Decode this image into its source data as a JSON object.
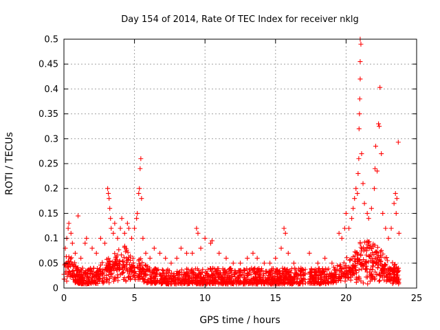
{
  "chart_data": {
    "type": "scatter",
    "title": "Day 154 of 2014, Rate Of TEC Index for receiver nklg",
    "xlabel": "GPS time / hours",
    "ylabel": "ROTI / TECUs",
    "xlim": [
      0,
      25
    ],
    "ylim": [
      0,
      0.5
    ],
    "x_ticks": [
      0,
      5,
      10,
      15,
      20,
      25
    ],
    "x_tick_labels": [
      "0",
      "5",
      "10",
      "15",
      "20",
      "25"
    ],
    "y_ticks": [
      0,
      0.05,
      0.1,
      0.15,
      0.2,
      0.25,
      0.3,
      0.35,
      0.4,
      0.45,
      0.5
    ],
    "y_tick_labels": [
      "0",
      "0.05",
      "0.1",
      "0.15",
      "0.2",
      "0.25",
      "0.3",
      "0.35",
      "0.4",
      "0.45",
      "0.5"
    ],
    "grid": true,
    "marker": "+",
    "marker_color": "#ff0000",
    "background_band": {
      "x_range": [
        0,
        23.8
      ],
      "y_range": [
        0.008,
        0.04
      ],
      "description_hidden": true
    },
    "points": [
      {
        "x": 0.1,
        "y": 0.08
      },
      {
        "x": 0.2,
        "y": 0.1
      },
      {
        "x": 0.3,
        "y": 0.12
      },
      {
        "x": 0.35,
        "y": 0.13
      },
      {
        "x": 0.5,
        "y": 0.11
      },
      {
        "x": 0.6,
        "y": 0.09
      },
      {
        "x": 0.8,
        "y": 0.07
      },
      {
        "x": 1.0,
        "y": 0.145
      },
      {
        "x": 1.2,
        "y": 0.06
      },
      {
        "x": 1.5,
        "y": 0.09
      },
      {
        "x": 1.6,
        "y": 0.1
      },
      {
        "x": 2.0,
        "y": 0.08
      },
      {
        "x": 2.3,
        "y": 0.07
      },
      {
        "x": 2.6,
        "y": 0.1
      },
      {
        "x": 2.9,
        "y": 0.09
      },
      {
        "x": 3.1,
        "y": 0.2
      },
      {
        "x": 3.15,
        "y": 0.19
      },
      {
        "x": 3.2,
        "y": 0.18
      },
      {
        "x": 3.25,
        "y": 0.16
      },
      {
        "x": 3.3,
        "y": 0.14
      },
      {
        "x": 3.35,
        "y": 0.12
      },
      {
        "x": 3.5,
        "y": 0.11
      },
      {
        "x": 3.6,
        "y": 0.13
      },
      {
        "x": 3.8,
        "y": 0.1
      },
      {
        "x": 4.0,
        "y": 0.12
      },
      {
        "x": 4.1,
        "y": 0.14
      },
      {
        "x": 4.3,
        "y": 0.11
      },
      {
        "x": 4.5,
        "y": 0.13
      },
      {
        "x": 4.6,
        "y": 0.12
      },
      {
        "x": 4.8,
        "y": 0.1
      },
      {
        "x": 5.0,
        "y": 0.12
      },
      {
        "x": 5.15,
        "y": 0.14
      },
      {
        "x": 5.2,
        "y": 0.15
      },
      {
        "x": 5.3,
        "y": 0.19
      },
      {
        "x": 5.35,
        "y": 0.2
      },
      {
        "x": 5.4,
        "y": 0.24
      },
      {
        "x": 5.45,
        "y": 0.26
      },
      {
        "x": 5.5,
        "y": 0.18
      },
      {
        "x": 5.6,
        "y": 0.1
      },
      {
        "x": 5.8,
        "y": 0.07
      },
      {
        "x": 6.1,
        "y": 0.06
      },
      {
        "x": 6.4,
        "y": 0.08
      },
      {
        "x": 6.8,
        "y": 0.07
      },
      {
        "x": 7.2,
        "y": 0.06
      },
      {
        "x": 7.6,
        "y": 0.05
      },
      {
        "x": 8.0,
        "y": 0.06
      },
      {
        "x": 8.3,
        "y": 0.08
      },
      {
        "x": 8.7,
        "y": 0.07
      },
      {
        "x": 9.1,
        "y": 0.07
      },
      {
        "x": 9.4,
        "y": 0.12
      },
      {
        "x": 9.5,
        "y": 0.11
      },
      {
        "x": 9.7,
        "y": 0.08
      },
      {
        "x": 10.0,
        "y": 0.1
      },
      {
        "x": 10.4,
        "y": 0.09
      },
      {
        "x": 10.5,
        "y": 0.095
      },
      {
        "x": 11.0,
        "y": 0.07
      },
      {
        "x": 11.5,
        "y": 0.06
      },
      {
        "x": 12.0,
        "y": 0.05
      },
      {
        "x": 12.5,
        "y": 0.05
      },
      {
        "x": 13.0,
        "y": 0.06
      },
      {
        "x": 13.4,
        "y": 0.07
      },
      {
        "x": 13.7,
        "y": 0.06
      },
      {
        "x": 14.2,
        "y": 0.05
      },
      {
        "x": 14.6,
        "y": 0.05
      },
      {
        "x": 15.0,
        "y": 0.06
      },
      {
        "x": 15.4,
        "y": 0.08
      },
      {
        "x": 15.6,
        "y": 0.12
      },
      {
        "x": 15.7,
        "y": 0.11
      },
      {
        "x": 15.9,
        "y": 0.07
      },
      {
        "x": 16.3,
        "y": 0.05
      },
      {
        "x": 16.8,
        "y": 0.04
      },
      {
        "x": 17.4,
        "y": 0.07
      },
      {
        "x": 18.0,
        "y": 0.05
      },
      {
        "x": 18.5,
        "y": 0.06
      },
      {
        "x": 19.0,
        "y": 0.05
      },
      {
        "x": 19.5,
        "y": 0.11
      },
      {
        "x": 19.7,
        "y": 0.1
      },
      {
        "x": 19.9,
        "y": 0.12
      },
      {
        "x": 20.0,
        "y": 0.15
      },
      {
        "x": 20.2,
        "y": 0.12
      },
      {
        "x": 20.4,
        "y": 0.14
      },
      {
        "x": 20.5,
        "y": 0.16
      },
      {
        "x": 20.6,
        "y": 0.18
      },
      {
        "x": 20.7,
        "y": 0.2
      },
      {
        "x": 20.8,
        "y": 0.19
      },
      {
        "x": 20.85,
        "y": 0.23
      },
      {
        "x": 20.9,
        "y": 0.26
      },
      {
        "x": 20.92,
        "y": 0.32
      },
      {
        "x": 20.95,
        "y": 0.35
      },
      {
        "x": 20.97,
        "y": 0.38
      },
      {
        "x": 21.0,
        "y": 0.42
      },
      {
        "x": 21.0,
        "y": 0.455
      },
      {
        "x": 21.0,
        "y": 0.5
      },
      {
        "x": 21.05,
        "y": 0.49
      },
      {
        "x": 21.1,
        "y": 0.27
      },
      {
        "x": 21.2,
        "y": 0.21
      },
      {
        "x": 21.3,
        "y": 0.17
      },
      {
        "x": 21.5,
        "y": 0.15
      },
      {
        "x": 21.6,
        "y": 0.14
      },
      {
        "x": 21.8,
        "y": 0.16
      },
      {
        "x": 22.0,
        "y": 0.2
      },
      {
        "x": 22.05,
        "y": 0.24
      },
      {
        "x": 22.1,
        "y": 0.285
      },
      {
        "x": 22.2,
        "y": 0.235
      },
      {
        "x": 22.3,
        "y": 0.33
      },
      {
        "x": 22.35,
        "y": 0.325
      },
      {
        "x": 22.4,
        "y": 0.403
      },
      {
        "x": 22.5,
        "y": 0.27
      },
      {
        "x": 22.6,
        "y": 0.15
      },
      {
        "x": 22.8,
        "y": 0.12
      },
      {
        "x": 23.0,
        "y": 0.1
      },
      {
        "x": 23.2,
        "y": 0.12
      },
      {
        "x": 23.4,
        "y": 0.17
      },
      {
        "x": 23.5,
        "y": 0.19
      },
      {
        "x": 23.55,
        "y": 0.15
      },
      {
        "x": 23.6,
        "y": 0.18
      },
      {
        "x": 23.7,
        "y": 0.293
      },
      {
        "x": 23.75,
        "y": 0.11
      }
    ]
  }
}
